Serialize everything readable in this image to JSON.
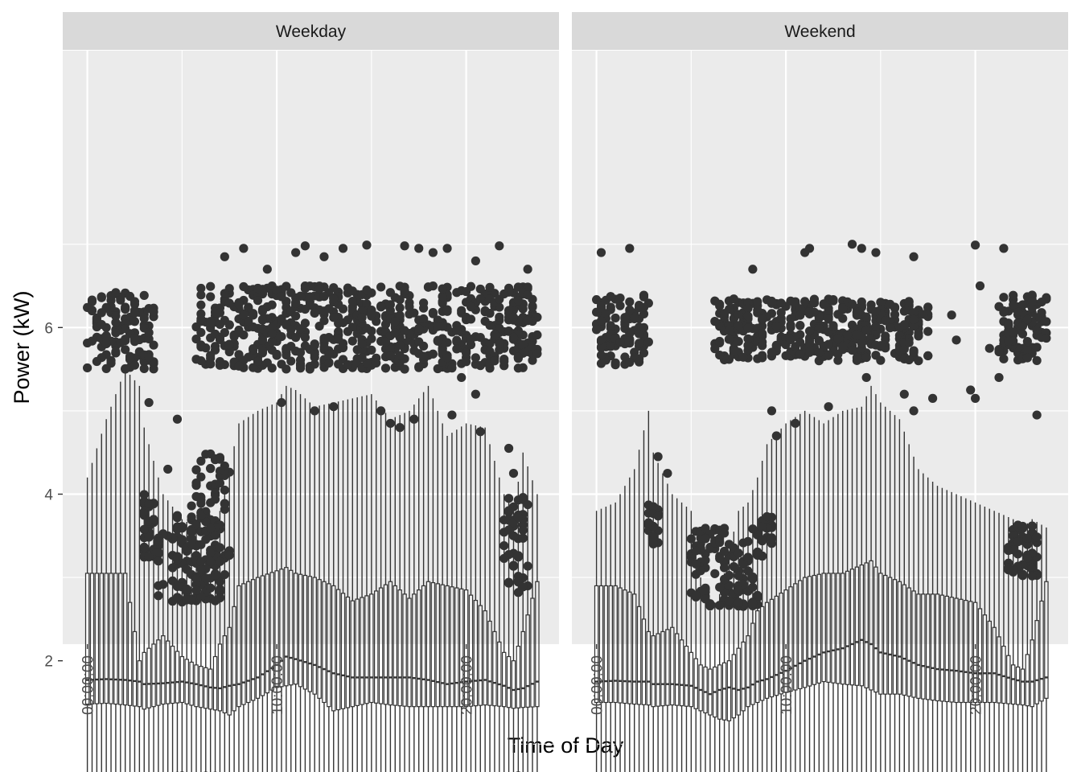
{
  "chart_data": {
    "type": "box",
    "title": "",
    "xlabel": "Time of Day",
    "ylabel": "Power (kW)",
    "x_unit": "hour of day",
    "x_range": [
      0,
      23.75
    ],
    "x_interval_minutes": 15,
    "x_ticks": [
      "00:00:00",
      "10:00:00",
      "20:00:00"
    ],
    "y_ticks": [
      2,
      4,
      6
    ],
    "ylim": [
      0.2,
      7.25
    ],
    "grid": true,
    "legend": "none",
    "colors": {
      "panel_bg": "#ebebeb",
      "strip_bg": "#d9d9d9",
      "grid": "#ffffff",
      "ink": "#333333"
    },
    "panels": [
      {
        "name": "Weekday",
        "anchors": {
          "x": [
            0,
            1,
            2,
            2.75,
            3,
            4,
            5,
            5.75,
            6.5,
            7,
            7.5,
            8,
            9,
            10,
            10.5,
            11,
            12,
            13,
            14,
            15,
            16,
            17,
            18,
            19,
            20,
            21,
            22,
            22.5,
            23,
            23.75
          ],
          "lower": [
            0.5,
            0.5,
            0.5,
            0.5,
            0.5,
            0.5,
            0.5,
            0.5,
            0.5,
            0.5,
            0.5,
            0.5,
            0.5,
            0.5,
            0.5,
            0.5,
            0.5,
            0.5,
            0.5,
            0.5,
            0.5,
            0.5,
            0.5,
            0.5,
            0.5,
            0.5,
            0.5,
            0.5,
            0.5,
            0.5
          ],
          "q1": [
            1.48,
            1.49,
            1.47,
            1.45,
            1.42,
            1.48,
            1.5,
            1.45,
            1.42,
            1.4,
            1.35,
            1.45,
            1.55,
            1.68,
            1.7,
            1.72,
            1.6,
            1.4,
            1.45,
            1.5,
            1.47,
            1.45,
            1.45,
            1.45,
            1.45,
            1.47,
            1.45,
            1.43,
            1.44,
            1.45
          ],
          "median": [
            1.77,
            1.78,
            1.77,
            1.75,
            1.72,
            1.73,
            1.75,
            1.72,
            1.68,
            1.67,
            1.7,
            1.72,
            1.8,
            1.95,
            2.05,
            2.02,
            1.95,
            1.85,
            1.8,
            1.8,
            1.8,
            1.8,
            1.77,
            1.72,
            1.75,
            1.77,
            1.7,
            1.65,
            1.67,
            1.75
          ],
          "q3": [
            3.05,
            3.05,
            3.05,
            2.0,
            2.1,
            2.3,
            2.05,
            1.95,
            1.9,
            2.2,
            2.4,
            2.9,
            3.0,
            3.08,
            3.12,
            3.05,
            3.0,
            2.9,
            2.72,
            2.8,
            2.95,
            2.75,
            2.95,
            2.9,
            2.85,
            2.6,
            2.1,
            2.0,
            2.35,
            2.95
          ],
          "upper": [
            4.2,
            4.9,
            5.5,
            5.3,
            4.8,
            4.0,
            3.7,
            3.6,
            3.0,
            3.8,
            4.3,
            4.85,
            5.0,
            5.1,
            5.3,
            5.25,
            5.05,
            5.1,
            5.15,
            5.2,
            4.9,
            5.0,
            5.3,
            4.7,
            4.85,
            4.8,
            4.0,
            3.8,
            4.5,
            4.0
          ]
        },
        "outlier_bands": [
          {
            "x": [
              0,
              3.5
            ],
            "y": [
              5.5,
              6.45
            ]
          },
          {
            "x": [
              2.75,
              3.75
            ],
            "y": [
              3.2,
              4.0
            ]
          },
          {
            "x": [
              3.75,
              7
            ],
            "y": [
              2.7,
              3.8
            ]
          },
          {
            "x": [
              5.5,
              7.5
            ],
            "y": [
              3.0,
              4.5
            ]
          },
          {
            "x": [
              5.75,
              23.25
            ],
            "y": [
              5.5,
              6.5
            ]
          },
          {
            "x": [
              22,
              23.25
            ],
            "y": [
              2.8,
              4.0
            ]
          },
          {
            "x": [
              22.5,
              23.75
            ],
            "y": [
              5.6,
              6.45
            ]
          },
          {
            "x": [
              4.5,
              5
            ],
            "y": [
              0.48,
              0.62
            ]
          },
          {
            "x": [
              6,
              7
            ],
            "y": [
              0.48,
              0.62
            ]
          },
          {
            "x": [
              21.75,
              23.25
            ],
            "y": [
              0.48,
              0.62
            ]
          }
        ],
        "outlier_points": [
          {
            "x": 7.25,
            "y": 6.85
          },
          {
            "x": 8.25,
            "y": 6.95
          },
          {
            "x": 9.5,
            "y": 6.7
          },
          {
            "x": 11,
            "y": 6.9
          },
          {
            "x": 11.5,
            "y": 6.98
          },
          {
            "x": 12.5,
            "y": 6.85
          },
          {
            "x": 13.5,
            "y": 6.95
          },
          {
            "x": 14.75,
            "y": 6.99
          },
          {
            "x": 16.75,
            "y": 6.98
          },
          {
            "x": 17.5,
            "y": 6.95
          },
          {
            "x": 18.25,
            "y": 6.9
          },
          {
            "x": 19,
            "y": 6.95
          },
          {
            "x": 20.5,
            "y": 6.8
          },
          {
            "x": 21.75,
            "y": 6.98
          },
          {
            "x": 23.25,
            "y": 6.7
          },
          {
            "x": 10.25,
            "y": 5.1
          },
          {
            "x": 12,
            "y": 5.0
          },
          {
            "x": 13,
            "y": 5.05
          },
          {
            "x": 15.5,
            "y": 5.0
          },
          {
            "x": 16.5,
            "y": 4.8
          },
          {
            "x": 19.25,
            "y": 4.95
          },
          {
            "x": 20.75,
            "y": 4.75
          },
          {
            "x": 4.75,
            "y": 4.9
          },
          {
            "x": 4.25,
            "y": 4.3
          },
          {
            "x": 3.25,
            "y": 5.1
          },
          {
            "x": 22.25,
            "y": 4.55
          },
          {
            "x": 22.5,
            "y": 4.25
          },
          {
            "x": 20.5,
            "y": 5.2
          },
          {
            "x": 21.5,
            "y": 5.6
          },
          {
            "x": 19.75,
            "y": 5.4
          },
          {
            "x": 20.25,
            "y": 6.1
          },
          {
            "x": 17.25,
            "y": 4.9
          },
          {
            "x": 16,
            "y": 4.85
          }
        ]
      },
      {
        "name": "Weekend",
        "anchors": {
          "x": [
            0,
            1,
            2,
            2.75,
            3,
            4,
            5,
            5.5,
            6,
            6.5,
            7,
            7.5,
            8,
            8.5,
            9,
            10,
            11,
            12,
            13,
            14,
            14.5,
            15,
            16,
            17,
            18,
            19,
            20,
            21,
            22,
            22.5,
            23,
            23.75
          ],
          "lower": [
            0.5,
            0.5,
            0.5,
            0.5,
            0.5,
            0.5,
            0.5,
            0.5,
            0.5,
            0.5,
            0.5,
            0.5,
            0.5,
            0.5,
            0.5,
            0.5,
            0.5,
            0.5,
            0.5,
            0.5,
            0.5,
            0.5,
            0.5,
            0.5,
            0.5,
            0.5,
            0.5,
            0.5,
            0.5,
            0.5,
            0.5,
            0.5
          ],
          "q1": [
            1.5,
            1.5,
            1.48,
            1.47,
            1.45,
            1.47,
            1.45,
            1.4,
            1.35,
            1.3,
            1.28,
            1.35,
            1.45,
            1.5,
            1.55,
            1.62,
            1.68,
            1.75,
            1.72,
            1.7,
            1.65,
            1.6,
            1.6,
            1.55,
            1.52,
            1.5,
            1.5,
            1.5,
            1.48,
            1.47,
            1.45,
            1.55
          ],
          "median": [
            1.75,
            1.76,
            1.75,
            1.75,
            1.72,
            1.72,
            1.7,
            1.65,
            1.6,
            1.65,
            1.68,
            1.65,
            1.68,
            1.75,
            1.78,
            1.88,
            2.0,
            2.1,
            2.15,
            2.25,
            2.2,
            2.1,
            2.05,
            1.95,
            1.9,
            1.88,
            1.85,
            1.85,
            1.78,
            1.75,
            1.75,
            1.8
          ],
          "q3": [
            2.9,
            2.9,
            2.8,
            2.35,
            2.3,
            2.4,
            2.1,
            1.95,
            1.9,
            1.95,
            2.0,
            2.15,
            2.3,
            2.6,
            2.7,
            2.85,
            3.0,
            3.05,
            3.05,
            3.15,
            3.2,
            3.05,
            2.95,
            2.8,
            2.8,
            2.75,
            2.7,
            2.4,
            1.95,
            1.9,
            2.25,
            2.95
          ],
          "upper": [
            3.8,
            3.9,
            4.3,
            5.0,
            4.5,
            4.0,
            3.8,
            3.0,
            2.6,
            2.8,
            3.3,
            3.8,
            3.9,
            4.2,
            4.6,
            4.85,
            5.0,
            4.85,
            5.0,
            5.05,
            5.3,
            5.1,
            4.9,
            4.3,
            4.1,
            4.0,
            3.9,
            3.8,
            3.7,
            3.6,
            3.7,
            3.6
          ]
        },
        "outlier_bands": [
          {
            "x": [
              0,
              2.75
            ],
            "y": [
              5.55,
              6.4
            ]
          },
          {
            "x": [
              2.75,
              3.25
            ],
            "y": [
              3.4,
              3.9
            ]
          },
          {
            "x": [
              5,
              8.75
            ],
            "y": [
              2.65,
              3.6
            ]
          },
          {
            "x": [
              8.75,
              9.25
            ],
            "y": [
              3.4,
              3.75
            ]
          },
          {
            "x": [
              6.25,
              17.5
            ],
            "y": [
              5.6,
              6.35
            ]
          },
          {
            "x": [
              21.25,
              23.75
            ],
            "y": [
              5.6,
              6.4
            ]
          },
          {
            "x": [
              21.75,
              23.25
            ],
            "y": [
              3.0,
              3.65
            ]
          },
          {
            "x": [
              5.5,
              6.5
            ],
            "y": [
              0.48,
              0.6
            ]
          },
          {
            "x": [
              7,
              8
            ],
            "y": [
              0.48,
              0.6
            ]
          },
          {
            "x": [
              8.5,
              9
            ],
            "y": [
              0.48,
              0.6
            ]
          }
        ],
        "outlier_points": [
          {
            "x": 0.25,
            "y": 6.9
          },
          {
            "x": 1.75,
            "y": 6.95
          },
          {
            "x": 11,
            "y": 6.9
          },
          {
            "x": 11.25,
            "y": 6.95
          },
          {
            "x": 13.5,
            "y": 7.0
          },
          {
            "x": 14,
            "y": 6.95
          },
          {
            "x": 14.75,
            "y": 6.9
          },
          {
            "x": 16.75,
            "y": 6.85
          },
          {
            "x": 20,
            "y": 6.99
          },
          {
            "x": 21.5,
            "y": 6.95
          },
          {
            "x": 8.25,
            "y": 6.7
          },
          {
            "x": 3.25,
            "y": 4.45
          },
          {
            "x": 3.75,
            "y": 4.25
          },
          {
            "x": 16.25,
            "y": 5.2
          },
          {
            "x": 16.75,
            "y": 5.0
          },
          {
            "x": 17.75,
            "y": 5.15
          },
          {
            "x": 19.75,
            "y": 5.25
          },
          {
            "x": 20,
            "y": 5.15
          },
          {
            "x": 20.75,
            "y": 5.75
          },
          {
            "x": 21.25,
            "y": 5.4
          },
          {
            "x": 19,
            "y": 5.85
          },
          {
            "x": 18.75,
            "y": 6.15
          },
          {
            "x": 23.25,
            "y": 4.95
          },
          {
            "x": 22.75,
            "y": 0.5
          },
          {
            "x": 9.5,
            "y": 4.7
          },
          {
            "x": 9.25,
            "y": 5.0
          },
          {
            "x": 10.5,
            "y": 4.85
          },
          {
            "x": 12.25,
            "y": 5.05
          },
          {
            "x": 14.25,
            "y": 5.4
          },
          {
            "x": 20.25,
            "y": 6.5
          }
        ]
      }
    ]
  }
}
